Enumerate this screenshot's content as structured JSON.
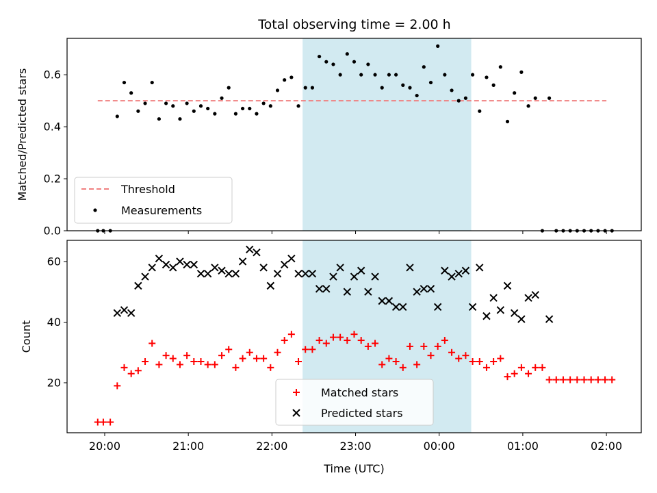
{
  "title": "Total observing time = 2.00 h",
  "colors": {
    "threshold": "#f08080",
    "measurements": "#000000",
    "matched": "#ff0000",
    "predicted": "#000000",
    "span": "#add8e6"
  },
  "chart_data": [
    {
      "type": "scatter",
      "ylabel": "Matched/Predicted stars",
      "xlim": [
        "19:33",
        "02:25"
      ],
      "ylim": [
        0,
        0.74
      ],
      "yticks": [
        "0.0",
        "0.2",
        "0.4",
        "0.6"
      ],
      "shaded_span": [
        "22:22",
        "00:23"
      ],
      "threshold": {
        "name": "Threshold",
        "y": 0.5,
        "x": [
          "19:55",
          "02:00"
        ]
      },
      "legend": {
        "placement": "lower-left",
        "entries": [
          "Threshold",
          "Measurements"
        ]
      },
      "series": [
        {
          "name": "Measurements",
          "points": [
            [
              "19:55",
              0
            ],
            [
              "19:59",
              0
            ],
            [
              "20:04",
              0
            ],
            [
              "20:09",
              0.44
            ],
            [
              "20:14",
              0.57
            ],
            [
              "20:19",
              0.53
            ],
            [
              "20:24",
              0.46
            ],
            [
              "20:29",
              0.49
            ],
            [
              "20:34",
              0.57
            ],
            [
              "20:39",
              0.43
            ],
            [
              "20:44",
              0.49
            ],
            [
              "20:49",
              0.48
            ],
            [
              "20:54",
              0.43
            ],
            [
              "20:59",
              0.49
            ],
            [
              "21:04",
              0.46
            ],
            [
              "21:09",
              0.48
            ],
            [
              "21:14",
              0.47
            ],
            [
              "21:19",
              0.45
            ],
            [
              "21:24",
              0.51
            ],
            [
              "21:29",
              0.55
            ],
            [
              "21:34",
              0.45
            ],
            [
              "21:39",
              0.47
            ],
            [
              "21:44",
              0.47
            ],
            [
              "21:49",
              0.45
            ],
            [
              "21:54",
              0.49
            ],
            [
              "21:59",
              0.48
            ],
            [
              "22:04",
              0.54
            ],
            [
              "22:09",
              0.58
            ],
            [
              "22:14",
              0.59
            ],
            [
              "22:19",
              0.48
            ],
            [
              "22:24",
              0.55
            ],
            [
              "22:29",
              0.55
            ],
            [
              "22:34",
              0.67
            ],
            [
              "22:39",
              0.65
            ],
            [
              "22:44",
              0.64
            ],
            [
              "22:49",
              0.6
            ],
            [
              "22:54",
              0.68
            ],
            [
              "22:59",
              0.65
            ],
            [
              "23:04",
              0.6
            ],
            [
              "23:09",
              0.64
            ],
            [
              "23:14",
              0.6
            ],
            [
              "23:19",
              0.55
            ],
            [
              "23:24",
              0.6
            ],
            [
              "23:29",
              0.6
            ],
            [
              "23:34",
              0.56
            ],
            [
              "23:39",
              0.55
            ],
            [
              "23:44",
              0.52
            ],
            [
              "23:49",
              0.63
            ],
            [
              "23:54",
              0.57
            ],
            [
              "23:59",
              0.71
            ],
            [
              "00:04",
              0.6
            ],
            [
              "00:09",
              0.54
            ],
            [
              "00:14",
              0.5
            ],
            [
              "00:19",
              0.51
            ],
            [
              "00:24",
              0.6
            ],
            [
              "00:29",
              0.46
            ],
            [
              "00:34",
              0.59
            ],
            [
              "00:39",
              0.56
            ],
            [
              "00:44",
              0.63
            ],
            [
              "00:49",
              0.42
            ],
            [
              "00:54",
              0.53
            ],
            [
              "00:59",
              0.61
            ],
            [
              "01:04",
              0.48
            ],
            [
              "01:09",
              0.51
            ],
            [
              "01:14",
              0
            ],
            [
              "01:19",
              0.51
            ],
            [
              "01:24",
              0
            ],
            [
              "01:29",
              0
            ],
            [
              "01:34",
              0
            ],
            [
              "01:39",
              0
            ],
            [
              "01:44",
              0
            ],
            [
              "01:49",
              0
            ],
            [
              "01:54",
              0
            ],
            [
              "01:59",
              0
            ],
            [
              "02:04",
              0
            ]
          ]
        }
      ]
    },
    {
      "type": "scatter",
      "xlabel": "Time (UTC)",
      "ylabel": "Count",
      "xlim": [
        "19:33",
        "02:25"
      ],
      "ylim": [
        3.5,
        67
      ],
      "yticks": [
        "20",
        "40",
        "60"
      ],
      "xticks": [
        "20:00",
        "21:00",
        "22:00",
        "23:00",
        "00:00",
        "01:00",
        "02:00"
      ],
      "shaded_span": [
        "22:22",
        "00:23"
      ],
      "legend": {
        "placement": "lower-center",
        "entries": [
          "Matched stars",
          "Predicted stars"
        ]
      },
      "series": [
        {
          "name": "Matched stars",
          "marker": "plus",
          "points": [
            [
              "19:55",
              7
            ],
            [
              "19:59",
              7
            ],
            [
              "20:04",
              7
            ],
            [
              "20:09",
              19
            ],
            [
              "20:14",
              25
            ],
            [
              "20:19",
              23
            ],
            [
              "20:24",
              24
            ],
            [
              "20:29",
              27
            ],
            [
              "20:34",
              33
            ],
            [
              "20:39",
              26
            ],
            [
              "20:44",
              29
            ],
            [
              "20:49",
              28
            ],
            [
              "20:54",
              26
            ],
            [
              "20:59",
              29
            ],
            [
              "21:04",
              27
            ],
            [
              "21:09",
              27
            ],
            [
              "21:14",
              26
            ],
            [
              "21:19",
              26
            ],
            [
              "21:24",
              29
            ],
            [
              "21:29",
              31
            ],
            [
              "21:34",
              25
            ],
            [
              "21:39",
              28
            ],
            [
              "21:44",
              30
            ],
            [
              "21:49",
              28
            ],
            [
              "21:54",
              28
            ],
            [
              "21:59",
              25
            ],
            [
              "22:04",
              30
            ],
            [
              "22:09",
              34
            ],
            [
              "22:14",
              36
            ],
            [
              "22:19",
              27
            ],
            [
              "22:24",
              31
            ],
            [
              "22:29",
              31
            ],
            [
              "22:34",
              34
            ],
            [
              "22:39",
              33
            ],
            [
              "22:44",
              35
            ],
            [
              "22:49",
              35
            ],
            [
              "22:54",
              34
            ],
            [
              "22:59",
              36
            ],
            [
              "23:04",
              34
            ],
            [
              "23:09",
              32
            ],
            [
              "23:14",
              33
            ],
            [
              "23:19",
              26
            ],
            [
              "23:24",
              28
            ],
            [
              "23:29",
              27
            ],
            [
              "23:34",
              25
            ],
            [
              "23:39",
              32
            ],
            [
              "23:44",
              26
            ],
            [
              "23:49",
              32
            ],
            [
              "23:54",
              29
            ],
            [
              "23:59",
              32
            ],
            [
              "00:04",
              34
            ],
            [
              "00:09",
              30
            ],
            [
              "00:14",
              28
            ],
            [
              "00:19",
              29
            ],
            [
              "00:24",
              27
            ],
            [
              "00:29",
              27
            ],
            [
              "00:34",
              25
            ],
            [
              "00:39",
              27
            ],
            [
              "00:44",
              28
            ],
            [
              "00:49",
              22
            ],
            [
              "00:54",
              23
            ],
            [
              "00:59",
              25
            ],
            [
              "01:04",
              23
            ],
            [
              "01:09",
              25
            ],
            [
              "01:14",
              25
            ],
            [
              "01:19",
              21
            ],
            [
              "01:24",
              21
            ],
            [
              "01:29",
              21
            ],
            [
              "01:34",
              21
            ],
            [
              "01:39",
              21
            ],
            [
              "01:44",
              21
            ],
            [
              "01:49",
              21
            ],
            [
              "01:54",
              21
            ],
            [
              "01:59",
              21
            ],
            [
              "02:04",
              21
            ]
          ]
        },
        {
          "name": "Predicted stars",
          "marker": "x",
          "points": [
            [
              "20:09",
              43
            ],
            [
              "20:14",
              44
            ],
            [
              "20:19",
              43
            ],
            [
              "20:24",
              52
            ],
            [
              "20:29",
              55
            ],
            [
              "20:34",
              58
            ],
            [
              "20:39",
              61
            ],
            [
              "20:44",
              59
            ],
            [
              "20:49",
              58
            ],
            [
              "20:54",
              60
            ],
            [
              "20:59",
              59
            ],
            [
              "21:04",
              59
            ],
            [
              "21:09",
              56
            ],
            [
              "21:14",
              56
            ],
            [
              "21:19",
              58
            ],
            [
              "21:24",
              57
            ],
            [
              "21:29",
              56
            ],
            [
              "21:34",
              56
            ],
            [
              "21:39",
              60
            ],
            [
              "21:44",
              64
            ],
            [
              "21:49",
              63
            ],
            [
              "21:54",
              58
            ],
            [
              "21:59",
              52
            ],
            [
              "22:04",
              56
            ],
            [
              "22:09",
              59
            ],
            [
              "22:14",
              61
            ],
            [
              "22:19",
              56
            ],
            [
              "22:24",
              56
            ],
            [
              "22:29",
              56
            ],
            [
              "22:34",
              51
            ],
            [
              "22:39",
              51
            ],
            [
              "22:44",
              55
            ],
            [
              "22:49",
              58
            ],
            [
              "22:54",
              50
            ],
            [
              "22:59",
              55
            ],
            [
              "23:04",
              57
            ],
            [
              "23:09",
              50
            ],
            [
              "23:14",
              55
            ],
            [
              "23:19",
              47
            ],
            [
              "23:24",
              47
            ],
            [
              "23:29",
              45
            ],
            [
              "23:34",
              45
            ],
            [
              "23:39",
              58
            ],
            [
              "23:44",
              50
            ],
            [
              "23:49",
              51
            ],
            [
              "23:54",
              51
            ],
            [
              "23:59",
              45
            ],
            [
              "00:04",
              57
            ],
            [
              "00:09",
              55
            ],
            [
              "00:14",
              56
            ],
            [
              "00:19",
              57
            ],
            [
              "00:24",
              45
            ],
            [
              "00:29",
              58
            ],
            [
              "00:34",
              42
            ],
            [
              "00:39",
              48
            ],
            [
              "00:44",
              44
            ],
            [
              "00:49",
              52
            ],
            [
              "00:54",
              43
            ],
            [
              "00:59",
              41
            ],
            [
              "01:04",
              48
            ],
            [
              "01:09",
              49
            ],
            [
              "01:19",
              41
            ]
          ]
        }
      ]
    }
  ]
}
